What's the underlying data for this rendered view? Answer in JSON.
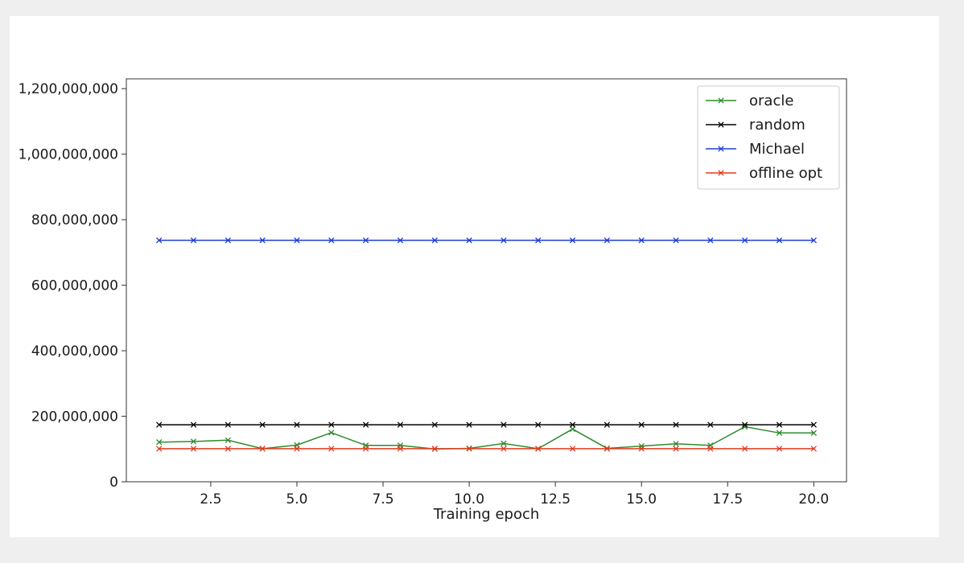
{
  "chart_data": {
    "type": "line",
    "title": "",
    "xlabel": "Training epoch",
    "ylabel": "",
    "xlim": [
      0.05,
      20.95
    ],
    "ylim": [
      0,
      1230000000
    ],
    "xticks": [
      2.5,
      5.0,
      7.5,
      10.0,
      12.5,
      15.0,
      17.5,
      20.0
    ],
    "xtick_labels": [
      "2.5",
      "5.0",
      "7.5",
      "10.0",
      "12.5",
      "15.0",
      "17.5",
      "20.0"
    ],
    "yticks": [
      0,
      200000000,
      400000000,
      600000000,
      800000000,
      1000000000,
      1200000000
    ],
    "ytick_labels": [
      "0",
      "200,000,000",
      "400,000,000",
      "600,000,000",
      "800,000,000",
      "1,000,000,000",
      "1,200,000,000"
    ],
    "grid": false,
    "legend_position": "top-right",
    "x": [
      1,
      2,
      3,
      4,
      5,
      6,
      7,
      8,
      9,
      10,
      11,
      12,
      13,
      14,
      15,
      16,
      17,
      18,
      19,
      20
    ],
    "series": [
      {
        "name": "oracle",
        "color": "#2e8b2e",
        "marker": "x",
        "values": [
          121000000,
          123000000,
          127000000,
          101000000,
          112000000,
          150000000,
          111000000,
          111000000,
          100000000,
          102000000,
          117000000,
          101000000,
          161000000,
          102000000,
          109000000,
          116000000,
          111000000,
          168000000,
          149000000,
          149000000
        ]
      },
      {
        "name": "random",
        "color": "#000000",
        "marker": "x",
        "values": [
          174000000,
          174000000,
          174000000,
          174000000,
          174000000,
          174000000,
          174000000,
          174000000,
          174000000,
          174000000,
          174000000,
          174000000,
          174000000,
          174000000,
          174000000,
          174000000,
          174000000,
          174000000,
          174000000,
          174000000
        ]
      },
      {
        "name": "Michael",
        "color": "#1f3fd6",
        "marker": "x",
        "values": [
          737000000,
          737000000,
          737000000,
          737000000,
          737000000,
          737000000,
          737000000,
          737000000,
          737000000,
          737000000,
          737000000,
          737000000,
          737000000,
          737000000,
          737000000,
          737000000,
          737000000,
          737000000,
          737000000,
          737000000
        ]
      },
      {
        "name": "offline opt",
        "color": "#e03a1e",
        "marker": "x",
        "values": [
          101000000,
          101000000,
          101000000,
          101000000,
          101000000,
          101000000,
          101000000,
          101000000,
          101000000,
          101000000,
          101000000,
          101000000,
          101000000,
          101000000,
          101000000,
          101000000,
          101000000,
          101000000,
          101000000,
          101000000
        ]
      }
    ]
  }
}
